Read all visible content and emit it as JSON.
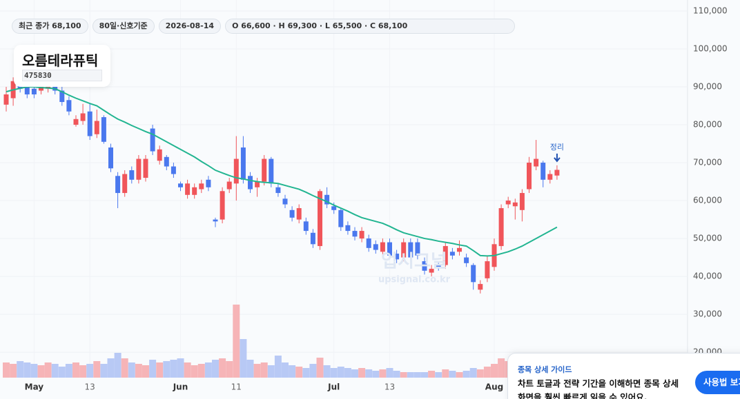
{
  "stock": {
    "name": "오름테라퓨틱",
    "code": "475830"
  },
  "badges": [
    "최근 종가 68,100",
    "80일·신호기준",
    "2026-08-14",
    "O 66,600 · H 69,300 · L 65,500 · C 68,100"
  ],
  "watermark": [
    "업시그널",
    "upsignal.co.kr"
  ],
  "guide": {
    "title": "종목 상세 가이드",
    "lines": [
      "차트 토글과 전략 기간을 이해하면 종목 상세",
      "화면을 훨씬 빠르게 읽을 수 있어요."
    ],
    "button": "사용법 보기"
  },
  "chart_data": {
    "type": "candlestick",
    "annotation": "정리",
    "up_color": "#f0555a",
    "down_color": "#4a78ee",
    "grid": true,
    "ylim": [
      13300,
      112900
    ],
    "yticks": [
      {
        "value": 20000,
        "label": "20,000"
      },
      {
        "value": 30000,
        "label": "30,000"
      },
      {
        "value": 40000,
        "label": "40,000"
      },
      {
        "value": 50000,
        "label": "50,000"
      },
      {
        "value": 60000,
        "label": "60,000"
      },
      {
        "value": 70000,
        "label": "70,000"
      },
      {
        "value": 80000,
        "label": "80,000"
      },
      {
        "value": 90000,
        "label": "90,000"
      },
      {
        "value": 100000,
        "label": "100,000"
      },
      {
        "value": 110000,
        "label": "110,000"
      }
    ],
    "categories": [
      null,
      null,
      null,
      null,
      "May",
      null,
      null,
      null,
      null,
      null,
      null,
      null,
      "13",
      null,
      null,
      null,
      null,
      null,
      null,
      null,
      null,
      null,
      null,
      null,
      null,
      "Jun",
      null,
      null,
      null,
      null,
      null,
      null,
      null,
      "11",
      null,
      null,
      null,
      null,
      null,
      null,
      null,
      null,
      null,
      null,
      null,
      null,
      null,
      "Jul",
      null,
      null,
      null,
      null,
      null,
      null,
      null,
      "13",
      null,
      null,
      null,
      null,
      null,
      null,
      null,
      null,
      null,
      null,
      null,
      null,
      null,
      null,
      "Aug",
      null,
      null,
      null,
      null,
      null,
      null,
      null,
      null,
      null
    ],
    "open": [
      85300,
      87000,
      91000,
      90000,
      89500,
      89000,
      89500,
      90000,
      89000,
      86500,
      80000,
      81000,
      83500,
      77500,
      82000,
      74000,
      66500,
      62000,
      68000,
      65500,
      66000,
      79000,
      70500,
      71500,
      69000,
      64500,
      61500,
      61500,
      63000,
      65500,
      55000,
      55000,
      63000,
      64500,
      74000,
      66500,
      63500,
      65000,
      71000,
      63500,
      60500,
      57500,
      55000,
      54500,
      51500,
      48000,
      61500,
      58500,
      57500,
      53500,
      52000,
      50000,
      50000,
      48500,
      46500,
      49000,
      46000,
      45000,
      49000,
      49000,
      44000,
      41000,
      43000,
      43000,
      46500,
      46500,
      45000,
      43000,
      36500,
      39500,
      42500,
      48000,
      59000,
      58500,
      57500,
      63000,
      69000,
      70000,
      65500,
      66600
    ],
    "high": [
      90000,
      92500,
      92000,
      91000,
      90500,
      92000,
      91500,
      91000,
      90000,
      87500,
      82500,
      85500,
      85500,
      84000,
      82500,
      75000,
      67500,
      68000,
      69000,
      72000,
      72000,
      80000,
      74500,
      72000,
      70000,
      65000,
      65500,
      64500,
      65500,
      66500,
      55500,
      63500,
      66000,
      77000,
      77000,
      67500,
      66000,
      72000,
      71500,
      64500,
      61500,
      58500,
      59000,
      55500,
      52500,
      63000,
      63500,
      59500,
      58000,
      54500,
      53000,
      53000,
      51000,
      49500,
      50000,
      50000,
      47000,
      50000,
      50000,
      50000,
      45000,
      43000,
      44000,
      49000,
      47500,
      49500,
      46000,
      43500,
      39000,
      45500,
      50000,
      59000,
      61000,
      60500,
      63000,
      71500,
      76000,
      70500,
      68000,
      69300
    ],
    "low": [
      83500,
      85000,
      88500,
      87000,
      87000,
      88000,
      88500,
      88000,
      85000,
      82500,
      79500,
      80000,
      76000,
      76500,
      75000,
      67500,
      58000,
      61000,
      64500,
      64500,
      65000,
      72000,
      69500,
      68000,
      66000,
      62500,
      60500,
      60500,
      62000,
      62500,
      53000,
      54000,
      62000,
      60000,
      64500,
      62000,
      61000,
      64000,
      63500,
      61000,
      58000,
      54500,
      54000,
      51000,
      47500,
      47000,
      58000,
      56500,
      52000,
      51000,
      49500,
      49000,
      46500,
      46000,
      45500,
      44500,
      43500,
      44000,
      44000,
      44500,
      40500,
      40000,
      41500,
      42000,
      44500,
      45500,
      42500,
      36500,
      35500,
      38500,
      41500,
      47000,
      58000,
      55000,
      54500,
      62000,
      68000,
      63500,
      64500,
      65500
    ],
    "close": [
      88000,
      91500,
      89500,
      88000,
      88000,
      91000,
      90500,
      89000,
      86000,
      83500,
      81500,
      83000,
      77000,
      81000,
      75500,
      68500,
      62000,
      67000,
      65500,
      71000,
      71000,
      73000,
      73500,
      69000,
      67000,
      63500,
      64500,
      63500,
      64500,
      63500,
      54500,
      62500,
      65000,
      71000,
      65500,
      63000,
      65000,
      71000,
      64500,
      62000,
      59000,
      55500,
      58000,
      52000,
      48500,
      62500,
      59000,
      57500,
      53000,
      52000,
      50500,
      52000,
      47500,
      47000,
      49000,
      45500,
      44500,
      49000,
      45000,
      45500,
      41500,
      42000,
      42500,
      48000,
      45500,
      47500,
      43500,
      38500,
      38000,
      44000,
      48500,
      58000,
      60000,
      59500,
      62000,
      70000,
      71000,
      65500,
      67000,
      68100
    ],
    "volume": [
      22,
      20,
      24,
      22,
      20,
      18,
      22,
      20,
      16,
      20,
      22,
      18,
      20,
      24,
      20,
      28,
      36,
      28,
      22,
      20,
      18,
      26,
      22,
      24,
      26,
      28,
      22,
      18,
      20,
      22,
      26,
      28,
      24,
      106,
      56,
      26,
      20,
      22,
      18,
      32,
      22,
      18,
      16,
      14,
      20,
      29,
      18,
      14,
      16,
      14,
      12,
      14,
      12,
      10,
      12,
      14,
      10,
      8,
      8,
      8,
      8,
      10,
      8,
      12,
      10,
      8,
      10,
      14,
      12,
      16,
      20,
      28,
      24,
      20,
      18,
      20,
      22,
      18,
      16,
      14
    ],
    "ma": {
      "color": "#22b591",
      "values": [
        88700,
        89200,
        89600,
        90000,
        90000,
        89800,
        89700,
        89500,
        88700,
        87800,
        87000,
        86300,
        85600,
        85000,
        83800,
        82600,
        81500,
        80700,
        79800,
        79000,
        78200,
        77500,
        76500,
        75500,
        74500,
        73500,
        72500,
        71500,
        70300,
        69200,
        68000,
        67300,
        66600,
        66000,
        65700,
        65300,
        65000,
        64800,
        64700,
        64500,
        64000,
        63500,
        63000,
        62200,
        61300,
        60500,
        59700,
        58800,
        58000,
        57200,
        56300,
        55500,
        55000,
        54500,
        54000,
        53200,
        52300,
        51500,
        51000,
        50500,
        50000,
        49700,
        49300,
        49000,
        48700,
        48300,
        48000,
        46800,
        45500,
        45400,
        45500,
        46000,
        46500,
        47200,
        48000,
        49000,
        50000,
        51000,
        52000,
        53000
      ]
    }
  }
}
